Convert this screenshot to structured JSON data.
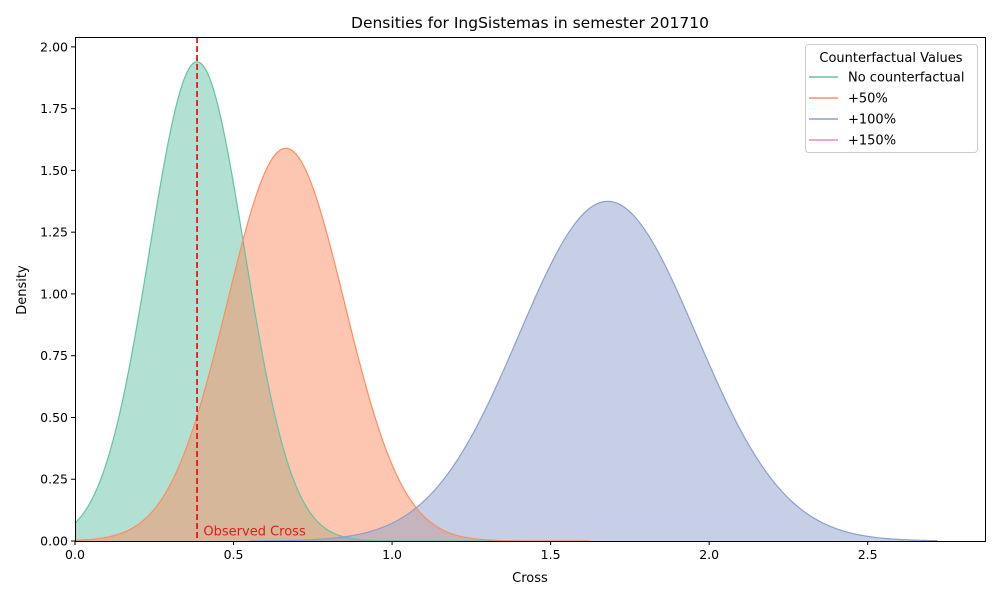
{
  "chart_data": {
    "type": "area",
    "title": "Densities for IngSistemas in semester 201710",
    "xlabel": "Cross",
    "ylabel": "Density",
    "xlim": [
      0,
      2.87
    ],
    "ylim": [
      0,
      2.04
    ],
    "x_ticks": [
      "0.0",
      "0.5",
      "1.0",
      "1.5",
      "2.0",
      "2.5"
    ],
    "x_tick_values": [
      0,
      0.5,
      1.0,
      1.5,
      2.0,
      2.5
    ],
    "y_ticks": [
      "0.00",
      "0.25",
      "0.50",
      "0.75",
      "1.00",
      "1.25",
      "1.50",
      "1.75",
      "2.00"
    ],
    "y_tick_values": [
      0,
      0.25,
      0.5,
      0.75,
      1.0,
      1.25,
      1.5,
      1.75,
      2.0
    ],
    "grid": false,
    "legend": {
      "title": "Counterfactual Values",
      "placement": "top-right"
    },
    "series": [
      {
        "name": "No counterfactual",
        "color": "#66c2a5",
        "fill": "#b2e0d2",
        "x_start": 0.0,
        "x_end": 1.35,
        "peak_x": 0.385,
        "peak_y": 1.94,
        "sd": 0.15
      },
      {
        "name": "+50%",
        "color": "#fc8d62",
        "fill": "#fbc0a8",
        "x_start": 0.0,
        "x_end": 1.62,
        "peak_x": 0.665,
        "peak_y": 1.59,
        "sd": 0.185
      },
      {
        "name": "+100%",
        "color": "#8da0cb",
        "fill": "#c4cde2",
        "x_start": 0.55,
        "x_end": 2.72,
        "peak_x": 1.68,
        "peak_y": 1.375,
        "sd": 0.28
      },
      {
        "name": "+150%",
        "color": "#e78ac3",
        "fill": "#f3c4e1",
        "x_start": null,
        "x_end": null,
        "peak_x": null,
        "peak_y": null,
        "sd": null
      }
    ],
    "annotations": [
      {
        "type": "vline",
        "x": 0.385,
        "color": "#e41a1c",
        "style": "dashed"
      },
      {
        "type": "text",
        "text": "Observed Cross",
        "x": 0.405,
        "y": 0.015,
        "color": "#e41a1c"
      }
    ]
  }
}
